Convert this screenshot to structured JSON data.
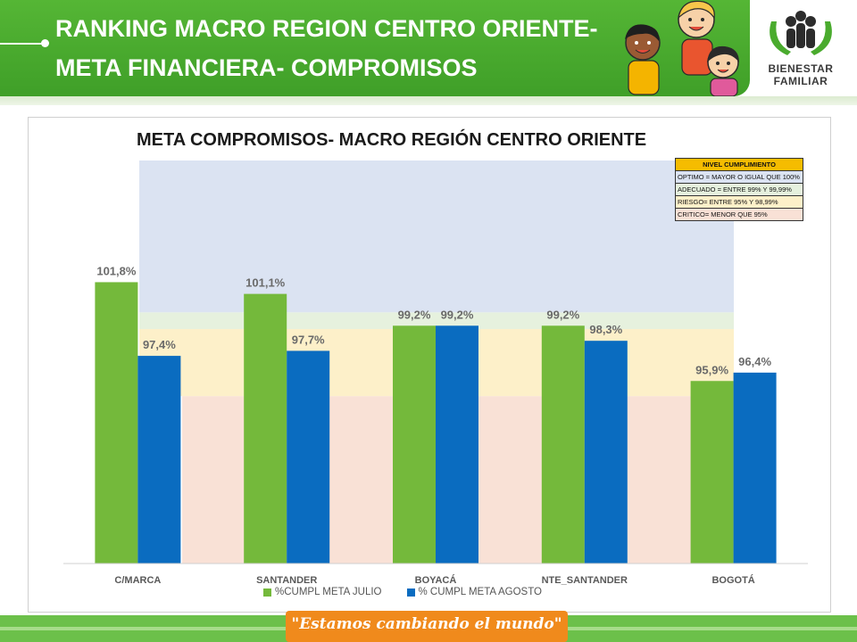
{
  "header": {
    "title": "RANKING MACRO REGION CENTRO ORIENTE-\nMETA FINANCIERA- COMPROMISOS",
    "logo": {
      "line1": "BIENESTAR",
      "line2": "FAMILIAR"
    },
    "brand_color": "#4aab2e"
  },
  "chart_data": {
    "type": "bar",
    "title": "META COMPROMISOS-  MACRO REGIÓN CENTRO ORIENTE",
    "categories": [
      "C/MARCA",
      "SANTANDER",
      "BOYACÁ",
      "NTE_SANTANDER",
      "BOGOTÁ"
    ],
    "series": [
      {
        "name": "%CUMPL META JULIO",
        "values": [
          101.8,
          101.1,
          99.2,
          99.2,
          95.9
        ],
        "labels": [
          "101,8%",
          "101,1%",
          "99,2%",
          "99,2%",
          "95,9%"
        ],
        "color": "#74b93b"
      },
      {
        "name": "% CUMPL META AGOSTO",
        "values": [
          97.4,
          97.7,
          99.2,
          98.3,
          96.4
        ],
        "labels": [
          "97,4%",
          "97,7%",
          "99,2%",
          "98,3%",
          "96,4%"
        ],
        "color": "#0a6cc0"
      }
    ],
    "ylim": [
      85,
      108
    ],
    "grid": false,
    "legend_position": "bottom",
    "bands": [
      {
        "level": "critico",
        "from": 85,
        "to": 95,
        "color": "#f9e1d6"
      },
      {
        "level": "riesgo",
        "from": 95,
        "to": 99,
        "color": "#fdf0c9"
      },
      {
        "level": "adecuado",
        "from": 99,
        "to": 100,
        "color": "#e6f1de"
      },
      {
        "level": "optimo",
        "from": 100,
        "to": 108,
        "color": "#dbe3f2"
      }
    ]
  },
  "levels_table": {
    "header": "NIVEL CUMPLIMIENTO",
    "rows": [
      "OPTIMO = MAYOR O IGUAL QUE 100%",
      "ADECUADO = ENTRE 99% Y 99,99%",
      "RIESGO= ENTRE 95% Y 98,99%",
      "CRITICO= MENOR QUE 95%"
    ]
  },
  "footer": {
    "slogan": "\"Estamos cambiando el mundo\""
  }
}
